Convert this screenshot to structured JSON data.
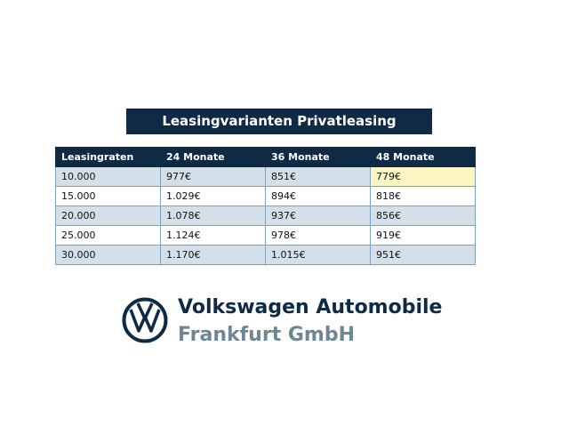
{
  "title": "Leasingvarianten Privatleasing",
  "table": {
    "header": [
      "Leasingraten",
      "24 Monate",
      "36 Monate",
      "48 Monate"
    ],
    "rows": [
      [
        "10.000",
        "977€",
        "851€",
        "779€"
      ],
      [
        "15.000",
        "1.029€",
        "894€",
        "818€"
      ],
      [
        "20.000",
        "1.078€",
        "937€",
        "856€"
      ],
      [
        "25.000",
        "1.124€",
        "978€",
        "919€"
      ],
      [
        "30.000",
        "1.170€",
        "1.015€",
        "951€"
      ]
    ]
  },
  "brand": {
    "line1": "Volkswagen Automobile",
    "line2": "Frankfurt GmbH"
  }
}
